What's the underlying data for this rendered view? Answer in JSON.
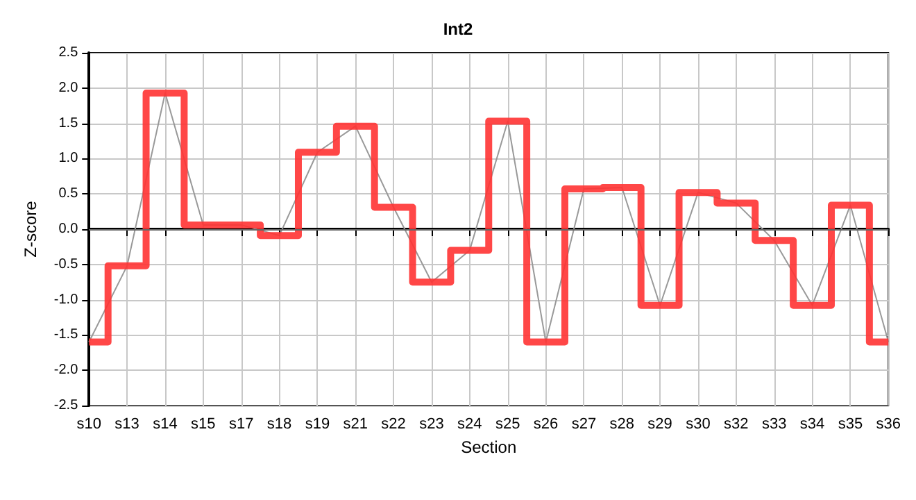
{
  "chart_data": {
    "type": "line",
    "title": "Int2",
    "xlabel": "Section",
    "ylabel": "Z-score",
    "categories": [
      "s10",
      "s13",
      "s14",
      "s15",
      "s17",
      "s18",
      "s19",
      "s21",
      "s22",
      "s23",
      "s24",
      "s25",
      "s26",
      "s27",
      "s28",
      "s29",
      "s30",
      "s32",
      "s33",
      "s34",
      "s35",
      "s36"
    ],
    "series": [
      {
        "color": "#999999",
        "values": [
          -1.6,
          -0.52,
          1.93,
          0.06,
          0.06,
          -0.09,
          1.09,
          1.46,
          0.31,
          -0.75,
          -0.3,
          1.53,
          -1.6,
          0.57,
          0.59,
          -1.08,
          0.52,
          0.37,
          -0.16,
          -1.08,
          0.34,
          -1.6
        ]
      },
      {
        "type": "step",
        "color": "#ff3333",
        "values": [
          -1.6,
          -0.52,
          1.93,
          0.06,
          0.06,
          -0.09,
          1.09,
          1.46,
          0.31,
          -0.75,
          -0.3,
          1.53,
          -1.6,
          0.57,
          0.59,
          -1.08,
          0.52,
          0.37,
          -0.16,
          -1.08,
          0.34,
          -1.6
        ]
      }
    ],
    "ylim": [
      -2.5,
      2.5
    ],
    "yticks": [
      {
        "value": -2.5,
        "label": "-2.5"
      },
      {
        "value": -2,
        "label": "-2.0"
      },
      {
        "value": -1.5,
        "label": "-1.5"
      },
      {
        "value": -1,
        "label": "-1.0"
      },
      {
        "value": -0.5,
        "label": "-0.5"
      },
      {
        "value": 0,
        "label": "0.0"
      },
      {
        "value": 0.5,
        "label": "0.5"
      },
      {
        "value": 1,
        "label": "1.0"
      },
      {
        "value": 1.5,
        "label": "1.5"
      },
      {
        "value": 2,
        "label": "2.0"
      },
      {
        "value": 2.5,
        "label": "2.5"
      }
    ],
    "ref_lines": [
      {
        "axis": "y",
        "value": 0,
        "color": "#666666"
      }
    ],
    "grid": true,
    "marker": "none"
  }
}
